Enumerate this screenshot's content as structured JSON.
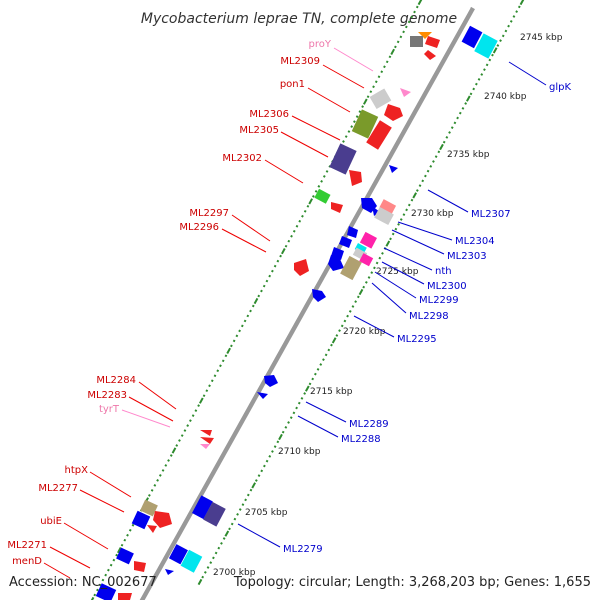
{
  "title": "Mycobacterium leprae TN, complete genome",
  "footer": {
    "accession": "Accession: NC_002677",
    "summary": "Topology: circular; Length: 3,268,203 bp; Genes: 1,655"
  },
  "colors": {
    "backbone": "#999999",
    "tick": "#2e8b2e",
    "left_label": "#cc0000",
    "right_label": "#0000cc",
    "rna_label": "#ee77aa"
  },
  "kbp_ticks": [
    "2700 kbp",
    "2705 kbp",
    "2710 kbp",
    "2715 kbp",
    "2720 kbp",
    "2725 kbp",
    "2730 kbp",
    "2735 kbp",
    "2740 kbp",
    "2745 kbp"
  ],
  "left_genes": [
    {
      "name": "proY",
      "kind": "rna"
    },
    {
      "name": "ML2309",
      "kind": "gene"
    },
    {
      "name": "pon1",
      "kind": "gene"
    },
    {
      "name": "ML2306",
      "kind": "gene"
    },
    {
      "name": "ML2305",
      "kind": "gene"
    },
    {
      "name": "ML2302",
      "kind": "gene"
    },
    {
      "name": "ML2297",
      "kind": "gene"
    },
    {
      "name": "ML2296",
      "kind": "gene"
    },
    {
      "name": "ML2284",
      "kind": "gene"
    },
    {
      "name": "ML2283",
      "kind": "gene"
    },
    {
      "name": "tyrT",
      "kind": "rna"
    },
    {
      "name": "htpX",
      "kind": "gene"
    },
    {
      "name": "ML2277",
      "kind": "gene"
    },
    {
      "name": "ubiE",
      "kind": "gene"
    },
    {
      "name": "ML2271",
      "kind": "gene"
    },
    {
      "name": "menD",
      "kind": "gene"
    }
  ],
  "right_genes": [
    {
      "name": "glpK"
    },
    {
      "name": "ML2307"
    },
    {
      "name": "ML2304"
    },
    {
      "name": "ML2303"
    },
    {
      "name": "nth"
    },
    {
      "name": "ML2300"
    },
    {
      "name": "ML2299"
    },
    {
      "name": "ML2298"
    },
    {
      "name": "ML2295"
    },
    {
      "name": "ML2289"
    },
    {
      "name": "ML2288"
    },
    {
      "name": "ML2279"
    }
  ]
}
